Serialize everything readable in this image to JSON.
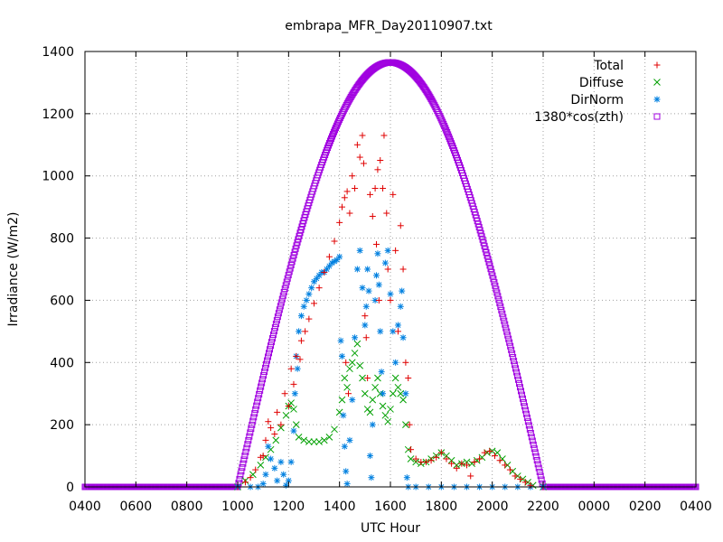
{
  "chart_data": {
    "type": "scatter",
    "title": "embrapa_MFR_Day20110907.txt",
    "xlabel": "UTC Hour",
    "ylabel": "Irradiance (W/m2)",
    "x_tick_labels": [
      "0400",
      "0600",
      "0800",
      "1000",
      "1200",
      "1400",
      "1600",
      "1800",
      "2000",
      "2200",
      "0000",
      "0200",
      "0400"
    ],
    "x_range_hours": [
      4,
      28
    ],
    "ylim": [
      0,
      1400
    ],
    "y_ticks": [
      0,
      200,
      400,
      600,
      800,
      1000,
      1200,
      1400
    ],
    "grid": true,
    "legend_position": "top-right",
    "series": [
      {
        "name": "Total",
        "color": "#e00000",
        "marker": "plus",
        "points": [
          [
            10.0,
            0
          ],
          [
            10.3,
            15
          ],
          [
            10.5,
            30
          ],
          [
            10.7,
            55
          ],
          [
            10.9,
            95
          ],
          [
            11.0,
            100
          ],
          [
            11.1,
            150
          ],
          [
            11.2,
            210
          ],
          [
            11.3,
            190
          ],
          [
            11.45,
            170
          ],
          [
            11.55,
            240
          ],
          [
            11.7,
            200
          ],
          [
            11.85,
            300
          ],
          [
            12.0,
            260
          ],
          [
            12.1,
            380
          ],
          [
            12.2,
            330
          ],
          [
            12.3,
            420
          ],
          [
            12.45,
            410
          ],
          [
            12.5,
            470
          ],
          [
            12.65,
            500
          ],
          [
            12.8,
            540
          ],
          [
            13.0,
            590
          ],
          [
            13.2,
            640
          ],
          [
            13.4,
            690
          ],
          [
            13.6,
            740
          ],
          [
            13.8,
            790
          ],
          [
            14.0,
            850
          ],
          [
            14.1,
            900
          ],
          [
            14.2,
            930
          ],
          [
            14.25,
            400
          ],
          [
            14.3,
            950
          ],
          [
            14.35,
            300
          ],
          [
            14.4,
            880
          ],
          [
            14.5,
            1000
          ],
          [
            14.6,
            960
          ],
          [
            14.7,
            1100
          ],
          [
            14.8,
            1060
          ],
          [
            14.9,
            1130
          ],
          [
            14.95,
            1040
          ],
          [
            15.0,
            550
          ],
          [
            15.05,
            480
          ],
          [
            15.1,
            350
          ],
          [
            15.2,
            940
          ],
          [
            15.3,
            870
          ],
          [
            15.4,
            960
          ],
          [
            15.45,
            780
          ],
          [
            15.5,
            1020
          ],
          [
            15.55,
            600
          ],
          [
            15.6,
            1050
          ],
          [
            15.7,
            960
          ],
          [
            15.75,
            1130
          ],
          [
            15.85,
            880
          ],
          [
            15.9,
            700
          ],
          [
            16.0,
            600
          ],
          [
            16.1,
            940
          ],
          [
            16.2,
            760
          ],
          [
            16.3,
            500
          ],
          [
            16.4,
            840
          ],
          [
            16.5,
            700
          ],
          [
            16.6,
            400
          ],
          [
            16.7,
            350
          ],
          [
            16.75,
            200
          ],
          [
            16.8,
            120
          ],
          [
            17.0,
            90
          ],
          [
            17.2,
            80
          ],
          [
            17.4,
            80
          ],
          [
            17.6,
            85
          ],
          [
            17.8,
            95
          ],
          [
            18.0,
            110
          ],
          [
            18.2,
            90
          ],
          [
            18.4,
            75
          ],
          [
            18.6,
            60
          ],
          [
            18.8,
            75
          ],
          [
            19.0,
            70
          ],
          [
            19.15,
            35
          ],
          [
            19.3,
            80
          ],
          [
            19.5,
            90
          ],
          [
            19.7,
            110
          ],
          [
            19.9,
            115
          ],
          [
            20.1,
            100
          ],
          [
            20.3,
            85
          ],
          [
            20.5,
            70
          ],
          [
            20.7,
            55
          ],
          [
            20.9,
            35
          ],
          [
            21.1,
            25
          ],
          [
            21.3,
            15
          ],
          [
            21.5,
            5
          ],
          [
            22.0,
            0
          ]
        ]
      },
      {
        "name": "Diffuse",
        "color": "#00a000",
        "marker": "cross",
        "points": [
          [
            10.0,
            0
          ],
          [
            10.3,
            20
          ],
          [
            10.6,
            40
          ],
          [
            10.9,
            70
          ],
          [
            11.1,
            95
          ],
          [
            11.3,
            120
          ],
          [
            11.5,
            150
          ],
          [
            11.7,
            190
          ],
          [
            11.9,
            230
          ],
          [
            12.0,
            260
          ],
          [
            12.1,
            270
          ],
          [
            12.2,
            250
          ],
          [
            12.3,
            200
          ],
          [
            12.4,
            160
          ],
          [
            12.6,
            150
          ],
          [
            12.8,
            145
          ],
          [
            13.0,
            145
          ],
          [
            13.2,
            145
          ],
          [
            13.4,
            150
          ],
          [
            13.6,
            160
          ],
          [
            13.8,
            185
          ],
          [
            14.0,
            240
          ],
          [
            14.1,
            280
          ],
          [
            14.2,
            350
          ],
          [
            14.3,
            320
          ],
          [
            14.4,
            380
          ],
          [
            14.5,
            400
          ],
          [
            14.6,
            430
          ],
          [
            14.7,
            460
          ],
          [
            14.8,
            390
          ],
          [
            14.9,
            350
          ],
          [
            15.0,
            300
          ],
          [
            15.1,
            250
          ],
          [
            15.2,
            240
          ],
          [
            15.3,
            280
          ],
          [
            15.4,
            320
          ],
          [
            15.5,
            350
          ],
          [
            15.6,
            300
          ],
          [
            15.7,
            260
          ],
          [
            15.8,
            230
          ],
          [
            15.9,
            210
          ],
          [
            16.0,
            250
          ],
          [
            16.1,
            300
          ],
          [
            16.2,
            350
          ],
          [
            16.3,
            320
          ],
          [
            16.4,
            300
          ],
          [
            16.5,
            280
          ],
          [
            16.6,
            200
          ],
          [
            16.7,
            120
          ],
          [
            16.8,
            90
          ],
          [
            17.0,
            80
          ],
          [
            17.2,
            75
          ],
          [
            17.4,
            80
          ],
          [
            17.6,
            90
          ],
          [
            17.8,
            100
          ],
          [
            18.0,
            110
          ],
          [
            18.2,
            100
          ],
          [
            18.4,
            85
          ],
          [
            18.6,
            70
          ],
          [
            18.8,
            75
          ],
          [
            19.0,
            80
          ],
          [
            19.2,
            75
          ],
          [
            19.4,
            85
          ],
          [
            19.6,
            95
          ],
          [
            19.8,
            110
          ],
          [
            20.0,
            115
          ],
          [
            20.2,
            110
          ],
          [
            20.4,
            90
          ],
          [
            20.6,
            70
          ],
          [
            20.8,
            50
          ],
          [
            21.0,
            35
          ],
          [
            21.2,
            25
          ],
          [
            21.4,
            15
          ],
          [
            21.6,
            5
          ],
          [
            22.0,
            0
          ]
        ]
      },
      {
        "name": "DirNorm",
        "color": "#0080e0",
        "marker": "star",
        "points": [
          [
            10.0,
            0
          ],
          [
            10.5,
            0
          ],
          [
            10.8,
            0
          ],
          [
            11.0,
            10
          ],
          [
            11.1,
            40
          ],
          [
            11.2,
            130
          ],
          [
            11.3,
            90
          ],
          [
            11.45,
            60
          ],
          [
            11.55,
            20
          ],
          [
            11.7,
            80
          ],
          [
            11.8,
            40
          ],
          [
            11.9,
            5
          ],
          [
            12.0,
            20
          ],
          [
            12.1,
            80
          ],
          [
            12.2,
            180
          ],
          [
            12.25,
            300
          ],
          [
            12.3,
            420
          ],
          [
            12.35,
            380
          ],
          [
            12.4,
            500
          ],
          [
            12.5,
            550
          ],
          [
            12.6,
            580
          ],
          [
            12.7,
            600
          ],
          [
            12.8,
            620
          ],
          [
            12.9,
            640
          ],
          [
            13.0,
            660
          ],
          [
            13.1,
            670
          ],
          [
            13.2,
            680
          ],
          [
            13.3,
            690
          ],
          [
            13.4,
            690
          ],
          [
            13.5,
            700
          ],
          [
            13.6,
            710
          ],
          [
            13.7,
            720
          ],
          [
            13.8,
            725
          ],
          [
            13.9,
            730
          ],
          [
            14.0,
            740
          ],
          [
            14.05,
            470
          ],
          [
            14.1,
            420
          ],
          [
            14.15,
            230
          ],
          [
            14.2,
            130
          ],
          [
            14.25,
            50
          ],
          [
            14.3,
            10
          ],
          [
            14.4,
            150
          ],
          [
            14.5,
            280
          ],
          [
            14.6,
            480
          ],
          [
            14.7,
            700
          ],
          [
            14.8,
            760
          ],
          [
            14.9,
            640
          ],
          [
            15.0,
            520
          ],
          [
            15.05,
            580
          ],
          [
            15.1,
            700
          ],
          [
            15.15,
            630
          ],
          [
            15.2,
            100
          ],
          [
            15.25,
            30
          ],
          [
            15.3,
            200
          ],
          [
            15.4,
            600
          ],
          [
            15.45,
            680
          ],
          [
            15.5,
            750
          ],
          [
            15.55,
            650
          ],
          [
            15.6,
            500
          ],
          [
            15.65,
            370
          ],
          [
            15.7,
            300
          ],
          [
            15.8,
            720
          ],
          [
            15.9,
            760
          ],
          [
            16.0,
            620
          ],
          [
            16.1,
            500
          ],
          [
            16.2,
            400
          ],
          [
            16.3,
            520
          ],
          [
            16.4,
            580
          ],
          [
            16.45,
            630
          ],
          [
            16.5,
            480
          ],
          [
            16.6,
            300
          ],
          [
            16.65,
            30
          ],
          [
            16.7,
            0
          ],
          [
            17.0,
            0
          ],
          [
            17.5,
            0
          ],
          [
            18.0,
            0
          ],
          [
            18.5,
            0
          ],
          [
            19.0,
            0
          ],
          [
            19.5,
            0
          ],
          [
            20.0,
            0
          ],
          [
            20.5,
            0
          ],
          [
            21.0,
            0
          ],
          [
            21.5,
            0
          ],
          [
            22.0,
            0
          ]
        ]
      },
      {
        "name": "1380*cos(zth)",
        "color": "#a000e0",
        "marker": "square",
        "curve": {
          "sunrise_hour": 10.0,
          "sunset_hour": 22.0,
          "peak_hour": 16.0,
          "peak": 1365,
          "step_hours": 0.035
        }
      }
    ]
  }
}
